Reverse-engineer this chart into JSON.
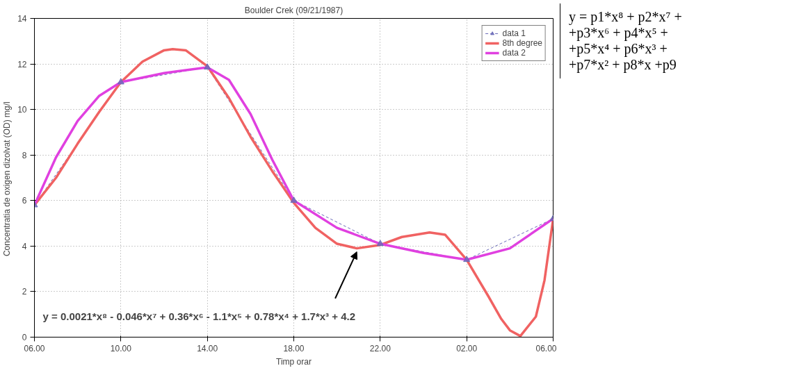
{
  "chart_data": {
    "type": "line",
    "title": "Boulder Crek (09/21/1987)",
    "xlabel": "Timp orar",
    "ylabel": "Concentratia de oxigen dizolvat (OD)  mg/l",
    "xlim": [
      "1987-09-21T06:00",
      "1987-09-22T06:00"
    ],
    "ylim": [
      0,
      14
    ],
    "xticks": [
      {
        "value": "1987-09-21T06:00",
        "label": "06.00"
      },
      {
        "value": "1987-09-21T10:00",
        "label": "10.00"
      },
      {
        "value": "1987-09-21T14:00",
        "label": "14.00"
      },
      {
        "value": "1987-09-21T18:00",
        "label": "18.00"
      },
      {
        "value": "1987-09-21T22:00",
        "label": "22.00"
      },
      {
        "value": "1987-09-22T02:00",
        "label": "02.00"
      },
      {
        "value": "1987-09-22T06:00",
        "label": "06.00"
      }
    ],
    "yticks": [
      0,
      2,
      4,
      6,
      8,
      10,
      12,
      14
    ],
    "grid": true,
    "legend": "top right",
    "series": [
      {
        "name": "data 1",
        "color": "#6a6ab8",
        "marker": "triangle",
        "line_style": "dashed",
        "x": [
          "1987-09-21T06:00",
          "1987-09-21T10:00",
          "1987-09-21T14:00",
          "1987-09-21T18:00",
          "1987-09-21T22:00",
          "1987-09-22T02:00",
          "1987-09-22T06:00"
        ],
        "values": [
          5.8,
          11.2,
          11.85,
          6.0,
          4.1,
          3.4,
          5.2
        ]
      },
      {
        "name": "8th degree",
        "color": "#f06262",
        "marker": "none",
        "line_style": "solid",
        "x": [
          "1987-09-21T06:00",
          "1987-09-21T07:00",
          "1987-09-21T08:00",
          "1987-09-21T09:00",
          "1987-09-21T10:00",
          "1987-09-21T11:00",
          "1987-09-21T12:00",
          "1987-09-21T12:24",
          "1987-09-21T13:00",
          "1987-09-21T14:00",
          "1987-09-21T15:00",
          "1987-09-21T16:00",
          "1987-09-21T17:00",
          "1987-09-21T18:00",
          "1987-09-21T19:00",
          "1987-09-21T20:00",
          "1987-09-21T20:55",
          "1987-09-21T22:00",
          "1987-09-21T23:00",
          "1987-09-22T00:17",
          "1987-09-22T01:00",
          "1987-09-22T02:00",
          "1987-09-22T03:00",
          "1987-09-22T03:36",
          "1987-09-22T04:00",
          "1987-09-22T04:29",
          "1987-09-22T05:12",
          "1987-09-22T05:36",
          "1987-09-22T06:00"
        ],
        "values": [
          5.8,
          7.0,
          8.5,
          9.9,
          11.2,
          12.1,
          12.6,
          12.65,
          12.6,
          11.9,
          10.5,
          8.8,
          7.3,
          5.9,
          4.8,
          4.1,
          3.9,
          4.05,
          4.4,
          4.6,
          4.5,
          3.4,
          1.8,
          0.8,
          0.3,
          0.05,
          0.9,
          2.5,
          5.2
        ]
      },
      {
        "name": "data 2",
        "color": "#e040e0",
        "marker": "none",
        "line_style": "solid",
        "x": [
          "1987-09-21T06:00",
          "1987-09-21T07:00",
          "1987-09-21T08:00",
          "1987-09-21T09:00",
          "1987-09-21T10:00",
          "1987-09-21T12:00",
          "1987-09-21T14:00",
          "1987-09-21T15:00",
          "1987-09-21T16:00",
          "1987-09-21T17:00",
          "1987-09-21T18:00",
          "1987-09-21T20:00",
          "1987-09-21T22:00",
          "1987-09-22T00:00",
          "1987-09-22T02:00",
          "1987-09-22T04:00",
          "1987-09-22T06:00"
        ],
        "values": [
          5.8,
          7.9,
          9.5,
          10.6,
          11.2,
          11.6,
          11.85,
          11.3,
          9.8,
          7.8,
          6.0,
          4.8,
          4.1,
          3.7,
          3.4,
          3.9,
          5.2
        ]
      }
    ],
    "annotations": [
      {
        "text": "y = 0.0021*x⁸ - 0.046*x⁷ + 0.36*x⁶ - 1.1*x⁵ + 0.78*x⁴ + 1.7*x³ + 4.2",
        "x": "1987-09-21T20:55",
        "y": 3.9
      },
      "y = p1*x⁸ + p2*x⁷ +\n+p3*x⁶ + p4*x⁵ +\n+p5*x⁴ + p6*x³ +\n+p7*x² + p8*x +p9"
    ]
  }
}
